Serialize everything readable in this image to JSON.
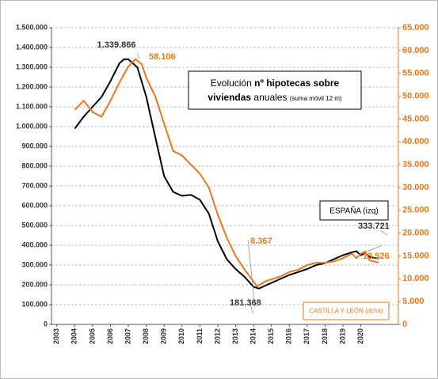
{
  "chart_data": {
    "type": "line",
    "title": {
      "text1": "Evolución ",
      "bold1": "nº hipotecas sobre",
      "bold2": "viviendas",
      "text2": " anuales ",
      "small": "(suma móvil 12 m)"
    },
    "xlim": [
      2002.7,
      2022.1
    ],
    "xticks": [
      2003,
      2004,
      2005,
      2006,
      2007,
      2008,
      2009,
      2010,
      2011,
      2012,
      2013,
      2014,
      2015,
      2016,
      2017,
      2018,
      2019,
      2020
    ],
    "ylim": [
      0,
      1500000
    ],
    "yticks": [
      {
        "value": 0,
        "label": "0"
      },
      {
        "value": 100000,
        "label": "100.000"
      },
      {
        "value": 200000,
        "label": "200.000"
      },
      {
        "value": 300000,
        "label": "300.000"
      },
      {
        "value": 400000,
        "label": "400.000"
      },
      {
        "value": 500000,
        "label": "500.000"
      },
      {
        "value": 600000,
        "label": "600.000"
      },
      {
        "value": 700000,
        "label": "700.000"
      },
      {
        "value": 800000,
        "label": "800.000"
      },
      {
        "value": 900000,
        "label": "900.000"
      },
      {
        "value": 1000000,
        "label": "1.000.000"
      },
      {
        "value": 1100000,
        "label": "1.100.000"
      },
      {
        "value": 1200000,
        "label": "1.200.000"
      },
      {
        "value": 1300000,
        "label": "1.300.000"
      },
      {
        "value": 1400000,
        "label": "1.400.000"
      },
      {
        "value": 1500000,
        "label": "1.500.000"
      }
    ],
    "y2lim": [
      0,
      65000
    ],
    "y2ticks": [
      {
        "value": 0,
        "label": "0"
      },
      {
        "value": 5000,
        "label": "5.000"
      },
      {
        "value": 10000,
        "label": "10.000"
      },
      {
        "value": 15000,
        "label": "15.000"
      },
      {
        "value": 20000,
        "label": "20.000"
      },
      {
        "value": 25000,
        "label": "25.000"
      },
      {
        "value": 30000,
        "label": "30.000"
      },
      {
        "value": 35000,
        "label": "35.000"
      },
      {
        "value": 40000,
        "label": "40.000"
      },
      {
        "value": 45000,
        "label": "45.000"
      },
      {
        "value": 50000,
        "label": "50.000"
      },
      {
        "value": 55000,
        "label": "55.000"
      },
      {
        "value": 60000,
        "label": "60.000"
      },
      {
        "value": 65000,
        "label": "65.000"
      }
    ],
    "grid": true,
    "series": [
      {
        "name": "ESPAÑA (izq)",
        "color": "#000000",
        "axis": "y",
        "x": [
          2004.0,
          2004.5,
          2005.0,
          2005.5,
          2006.0,
          2006.5,
          2006.75,
          2007.0,
          2007.5,
          2008.0,
          2008.5,
          2009.0,
          2009.5,
          2010.0,
          2010.5,
          2011.0,
          2011.5,
          2012.0,
          2012.5,
          2013.0,
          2013.5,
          2014.0,
          2014.3,
          2014.75,
          2015.5,
          2016.0,
          2016.5,
          2017.0,
          2017.5,
          2018.0,
          2018.5,
          2019.0,
          2019.5,
          2019.75,
          2020.0,
          2020.25,
          2020.5,
          2021.0
        ],
        "values": [
          990000,
          1050000,
          1100000,
          1150000,
          1230000,
          1320000,
          1339866,
          1340000,
          1300000,
          1150000,
          950000,
          750000,
          670000,
          650000,
          655000,
          630000,
          560000,
          420000,
          330000,
          280000,
          240000,
          190000,
          181368,
          200000,
          230000,
          250000,
          265000,
          280000,
          300000,
          310000,
          330000,
          350000,
          365000,
          370000,
          350000,
          360000,
          340000,
          333721
        ]
      },
      {
        "name": "CASTILLA Y LEÓN (dcha)",
        "color": "#e07b1f",
        "axis": "y2",
        "x": [
          2004.0,
          2004.5,
          2005.0,
          2005.5,
          2006.0,
          2006.5,
          2007.0,
          2007.4,
          2007.75,
          2008.0,
          2008.5,
          2009.0,
          2009.5,
          2010.0,
          2010.5,
          2011.0,
          2011.5,
          2012.0,
          2012.5,
          2013.0,
          2013.5,
          2014.2,
          2014.7,
          2015.5,
          2016.0,
          2016.5,
          2017.0,
          2017.5,
          2018.0,
          2018.5,
          2019.0,
          2019.5,
          2019.75,
          2020.0,
          2020.25,
          2020.5,
          2021.0
        ],
        "values": [
          47000,
          49000,
          46500,
          45500,
          49000,
          53000,
          56500,
          58106,
          57000,
          54000,
          50000,
          44000,
          38000,
          37000,
          35000,
          33000,
          30000,
          24000,
          19000,
          15000,
          12000,
          8367,
          9500,
          10500,
          11500,
          12000,
          13000,
          13500,
          13500,
          13800,
          14500,
          15500,
          14500,
          15500,
          16000,
          14000,
          13526
        ]
      }
    ],
    "annotations": [
      {
        "text": "1.339.866",
        "color": "#333333"
      },
      {
        "text": "58.106",
        "color": "#e07b1f"
      },
      {
        "text": "8.367",
        "color": "#e07b1f"
      },
      {
        "text": "181.368",
        "color": "#333333"
      },
      {
        "text": "333.721",
        "color": "#333333"
      },
      {
        "text": "13.526",
        "color": "#e07b1f"
      }
    ]
  }
}
